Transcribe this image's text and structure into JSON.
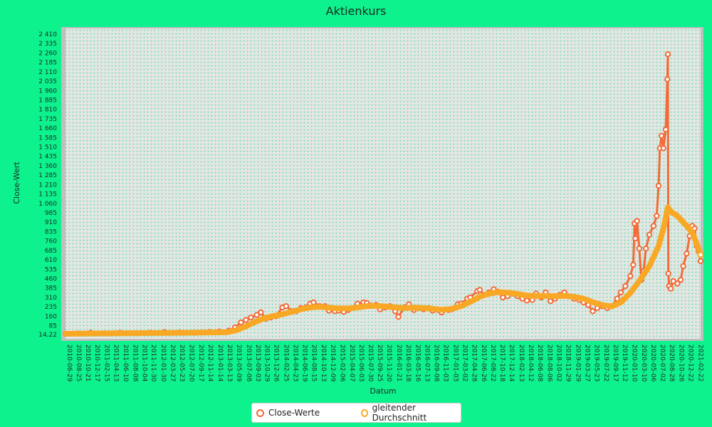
{
  "chart_data": {
    "type": "line",
    "title": "Aktienkurs",
    "xlabel": "Datum",
    "ylabel": "Close-Wert",
    "ylim": [
      14.22,
      2410
    ],
    "y_ticks": [
      "14,22",
      "85",
      "160",
      "235",
      "310",
      "385",
      "460",
      "535",
      "610",
      "685",
      "760",
      "835",
      "910",
      "985",
      "1 060",
      "1 135",
      "1 210",
      "1 285",
      "1 360",
      "1 435",
      "1 510",
      "1 585",
      "1 660",
      "1 735",
      "1 810",
      "1 885",
      "1 960",
      "2 035",
      "2 110",
      "2 185",
      "2 260",
      "2 335",
      "2 410"
    ],
    "x_ticks": [
      "2010-06-29",
      "2010-08-25",
      "2010-10-21",
      "2010-12-17",
      "2011-02-15",
      "2011-04-13",
      "2011-06-10",
      "2011-08-08",
      "2011-10-04",
      "2011-11-30",
      "2012-01-30",
      "2012-03-27",
      "2012-05-23",
      "2012-07-20",
      "2012-09-17",
      "2012-11-14",
      "2013-01-14",
      "2013-03-13",
      "2013-05-09",
      "2013-07-08",
      "2013-09-03",
      "2013-10-29",
      "2013-12-26",
      "2014-02-25",
      "2014-04-23",
      "2014-06-19",
      "2014-08-15",
      "2014-10-13",
      "2014-12-09",
      "2015-02-06",
      "2015-04-07",
      "2015-06-03",
      "2015-07-30",
      "2015-09-25",
      "2015-11-20",
      "2016-01-21",
      "2016-03-18",
      "2016-05-16",
      "2016-07-13",
      "2016-09-08",
      "2016-11-03",
      "2017-01-03",
      "2017-03-02",
      "2017-04-28",
      "2017-06-26",
      "2017-08-22",
      "2017-10-18",
      "2017-12-14",
      "2018-02-13",
      "2018-04-12",
      "2018-06-08",
      "2018-08-06",
      "2018-10-02",
      "2018-11-29",
      "2019-01-29",
      "2019-03-27",
      "2019-05-23",
      "2019-07-22",
      "2019-09-17",
      "2019-11-12",
      "2020-01-10",
      "2020-03-10",
      "2020-05-06",
      "2020-07-02",
      "2020-08-28",
      "2020-10-26",
      "2020-12-22",
      "2021-02-22"
    ],
    "x_range": [
      "2010-06-29",
      "2021-03-18"
    ],
    "grid": true,
    "legend_position": "bottom",
    "series": [
      {
        "name": "Close-Werte",
        "color": "#f26b38",
        "points": [
          [
            "2010-06-29",
            20
          ],
          [
            "2010-09-15",
            22
          ],
          [
            "2010-12-01",
            28
          ],
          [
            "2011-03-01",
            24
          ],
          [
            "2011-06-01",
            27
          ],
          [
            "2011-09-01",
            25
          ],
          [
            "2011-12-01",
            28
          ],
          [
            "2012-03-01",
            33
          ],
          [
            "2012-06-01",
            30
          ],
          [
            "2012-09-01",
            28
          ],
          [
            "2012-12-01",
            34
          ],
          [
            "2013-02-01",
            38
          ],
          [
            "2013-04-01",
            45
          ],
          [
            "2013-05-09",
            70
          ],
          [
            "2013-06-15",
            110
          ],
          [
            "2013-07-15",
            130
          ],
          [
            "2013-08-15",
            150
          ],
          [
            "2013-09-20",
            170
          ],
          [
            "2013-10-15",
            190
          ],
          [
            "2013-11-15",
            140
          ],
          [
            "2013-12-15",
            150
          ],
          [
            "2014-01-15",
            160
          ],
          [
            "2014-02-25",
            230
          ],
          [
            "2014-03-20",
            240
          ],
          [
            "2014-04-23",
            200
          ],
          [
            "2014-05-20",
            200
          ],
          [
            "2014-06-19",
            225
          ],
          [
            "2014-07-20",
            230
          ],
          [
            "2014-08-15",
            260
          ],
          [
            "2014-09-05",
            270
          ],
          [
            "2014-10-13",
            240
          ],
          [
            "2014-11-15",
            240
          ],
          [
            "2014-12-09",
            205
          ],
          [
            "2015-01-15",
            200
          ],
          [
            "2015-02-06",
            205
          ],
          [
            "2015-03-10",
            195
          ],
          [
            "2015-04-07",
            210
          ],
          [
            "2015-06-03",
            260
          ],
          [
            "2015-07-10",
            270
          ],
          [
            "2015-07-30",
            265
          ],
          [
            "2015-08-25",
            245
          ],
          [
            "2015-09-25",
            250
          ],
          [
            "2015-10-20",
            215
          ],
          [
            "2015-11-20",
            230
          ],
          [
            "2015-12-20",
            240
          ],
          [
            "2016-01-21",
            200
          ],
          [
            "2016-02-10",
            155
          ],
          [
            "2016-03-18",
            230
          ],
          [
            "2016-04-15",
            255
          ],
          [
            "2016-05-16",
            210
          ],
          [
            "2016-06-15",
            225
          ],
          [
            "2016-07-13",
            215
          ],
          [
            "2016-08-15",
            225
          ],
          [
            "2016-09-08",
            205
          ],
          [
            "2016-11-03",
            190
          ],
          [
            "2016-12-15",
            210
          ],
          [
            "2017-01-03",
            215
          ],
          [
            "2017-02-10",
            255
          ],
          [
            "2017-03-02",
            260
          ],
          [
            "2017-04-10",
            300
          ],
          [
            "2017-04-28",
            310
          ],
          [
            "2017-06-10",
            360
          ],
          [
            "2017-06-26",
            370
          ],
          [
            "2017-07-20",
            330
          ],
          [
            "2017-08-22",
            350
          ],
          [
            "2017-09-20",
            375
          ],
          [
            "2017-10-18",
            355
          ],
          [
            "2017-11-15",
            310
          ],
          [
            "2017-12-14",
            320
          ],
          [
            "2018-01-15",
            340
          ],
          [
            "2018-02-13",
            320
          ],
          [
            "2018-03-15",
            300
          ],
          [
            "2018-04-12",
            285
          ],
          [
            "2018-05-15",
            290
          ],
          [
            "2018-06-08",
            340
          ],
          [
            "2018-07-10",
            310
          ],
          [
            "2018-08-06",
            350
          ],
          [
            "2018-09-05",
            280
          ],
          [
            "2018-10-02",
            300
          ],
          [
            "2018-11-01",
            330
          ],
          [
            "2018-11-29",
            350
          ],
          [
            "2018-12-20",
            320
          ],
          [
            "2019-01-29",
            300
          ],
          [
            "2019-03-01",
            290
          ],
          [
            "2019-03-27",
            270
          ],
          [
            "2019-04-25",
            250
          ],
          [
            "2019-05-23",
            200
          ],
          [
            "2019-06-20",
            225
          ],
          [
            "2019-07-22",
            240
          ],
          [
            "2019-08-20",
            225
          ],
          [
            "2019-09-17",
            240
          ],
          [
            "2019-10-20",
            300
          ],
          [
            "2019-11-12",
            350
          ],
          [
            "2019-12-10",
            400
          ],
          [
            "2020-01-10",
            480
          ],
          [
            "2020-01-28",
            570
          ],
          [
            "2020-02-05",
            900
          ],
          [
            "2020-02-10",
            780
          ],
          [
            "2020-02-20",
            920
          ],
          [
            "2020-03-05",
            700
          ],
          [
            "2020-03-18",
            450
          ],
          [
            "2020-04-01",
            520
          ],
          [
            "2020-04-15",
            700
          ],
          [
            "2020-05-06",
            810
          ],
          [
            "2020-06-01",
            880
          ],
          [
            "2020-06-20",
            960
          ],
          [
            "2020-07-02",
            1200
          ],
          [
            "2020-07-10",
            1500
          ],
          [
            "2020-07-20",
            1600
          ],
          [
            "2020-08-01",
            1500
          ],
          [
            "2020-08-15",
            1650
          ],
          [
            "2020-08-25",
            2050
          ],
          [
            "2020-08-28",
            2250
          ],
          [
            "2020-08-31",
            500
          ],
          [
            "2020-09-05",
            400
          ],
          [
            "2020-09-15",
            380
          ],
          [
            "2020-10-01",
            440
          ],
          [
            "2020-10-26",
            420
          ],
          [
            "2020-11-15",
            450
          ],
          [
            "2020-12-01",
            560
          ],
          [
            "2020-12-22",
            660
          ],
          [
            "2021-01-10",
            800
          ],
          [
            "2021-01-25",
            880
          ],
          [
            "2021-02-09",
            860
          ],
          [
            "2021-02-22",
            720
          ],
          [
            "2021-03-05",
            680
          ],
          [
            "2021-03-18",
            600
          ]
        ]
      },
      {
        "name": "gleitender Durchschnitt",
        "color": "#f9a826",
        "points": [
          [
            "2010-06-29",
            20
          ],
          [
            "2011-06-01",
            24
          ],
          [
            "2012-06-01",
            28
          ],
          [
            "2013-03-13",
            32
          ],
          [
            "2013-05-09",
            45
          ],
          [
            "2013-07-08",
            75
          ],
          [
            "2013-09-03",
            110
          ],
          [
            "2013-10-29",
            140
          ],
          [
            "2013-12-26",
            160
          ],
          [
            "2014-02-25",
            175
          ],
          [
            "2014-04-23",
            195
          ],
          [
            "2014-06-19",
            215
          ],
          [
            "2014-08-15",
            230
          ],
          [
            "2014-10-13",
            235
          ],
          [
            "2014-12-09",
            228
          ],
          [
            "2015-02-06",
            222
          ],
          [
            "2015-04-07",
            222
          ],
          [
            "2015-06-03",
            230
          ],
          [
            "2015-07-30",
            240
          ],
          [
            "2015-09-25",
            243
          ],
          [
            "2015-11-20",
            238
          ],
          [
            "2016-01-21",
            230
          ],
          [
            "2016-03-18",
            225
          ],
          [
            "2016-05-16",
            228
          ],
          [
            "2016-07-13",
            225
          ],
          [
            "2016-09-08",
            220
          ],
          [
            "2016-11-03",
            212
          ],
          [
            "2017-01-03",
            218
          ],
          [
            "2017-03-02",
            240
          ],
          [
            "2017-04-28",
            275
          ],
          [
            "2017-06-26",
            315
          ],
          [
            "2017-08-22",
            340
          ],
          [
            "2017-10-18",
            352
          ],
          [
            "2017-12-14",
            348
          ],
          [
            "2018-02-13",
            338
          ],
          [
            "2018-04-12",
            325
          ],
          [
            "2018-06-08",
            320
          ],
          [
            "2018-08-06",
            322
          ],
          [
            "2018-10-02",
            320
          ],
          [
            "2018-11-29",
            322
          ],
          [
            "2019-01-29",
            315
          ],
          [
            "2019-03-27",
            300
          ],
          [
            "2019-05-23",
            272
          ],
          [
            "2019-07-22",
            248
          ],
          [
            "2019-09-17",
            238
          ],
          [
            "2019-11-12",
            270
          ],
          [
            "2020-01-10",
            345
          ],
          [
            "2020-03-10",
            450
          ],
          [
            "2020-05-06",
            560
          ],
          [
            "2020-07-02",
            720
          ],
          [
            "2020-08-05",
            880
          ],
          [
            "2020-08-28",
            1030
          ],
          [
            "2020-09-20",
            990
          ],
          [
            "2020-10-26",
            960
          ],
          [
            "2020-12-22",
            880
          ],
          [
            "2021-01-25",
            830
          ],
          [
            "2021-02-22",
            740
          ],
          [
            "2021-03-18",
            650
          ]
        ]
      }
    ]
  }
}
